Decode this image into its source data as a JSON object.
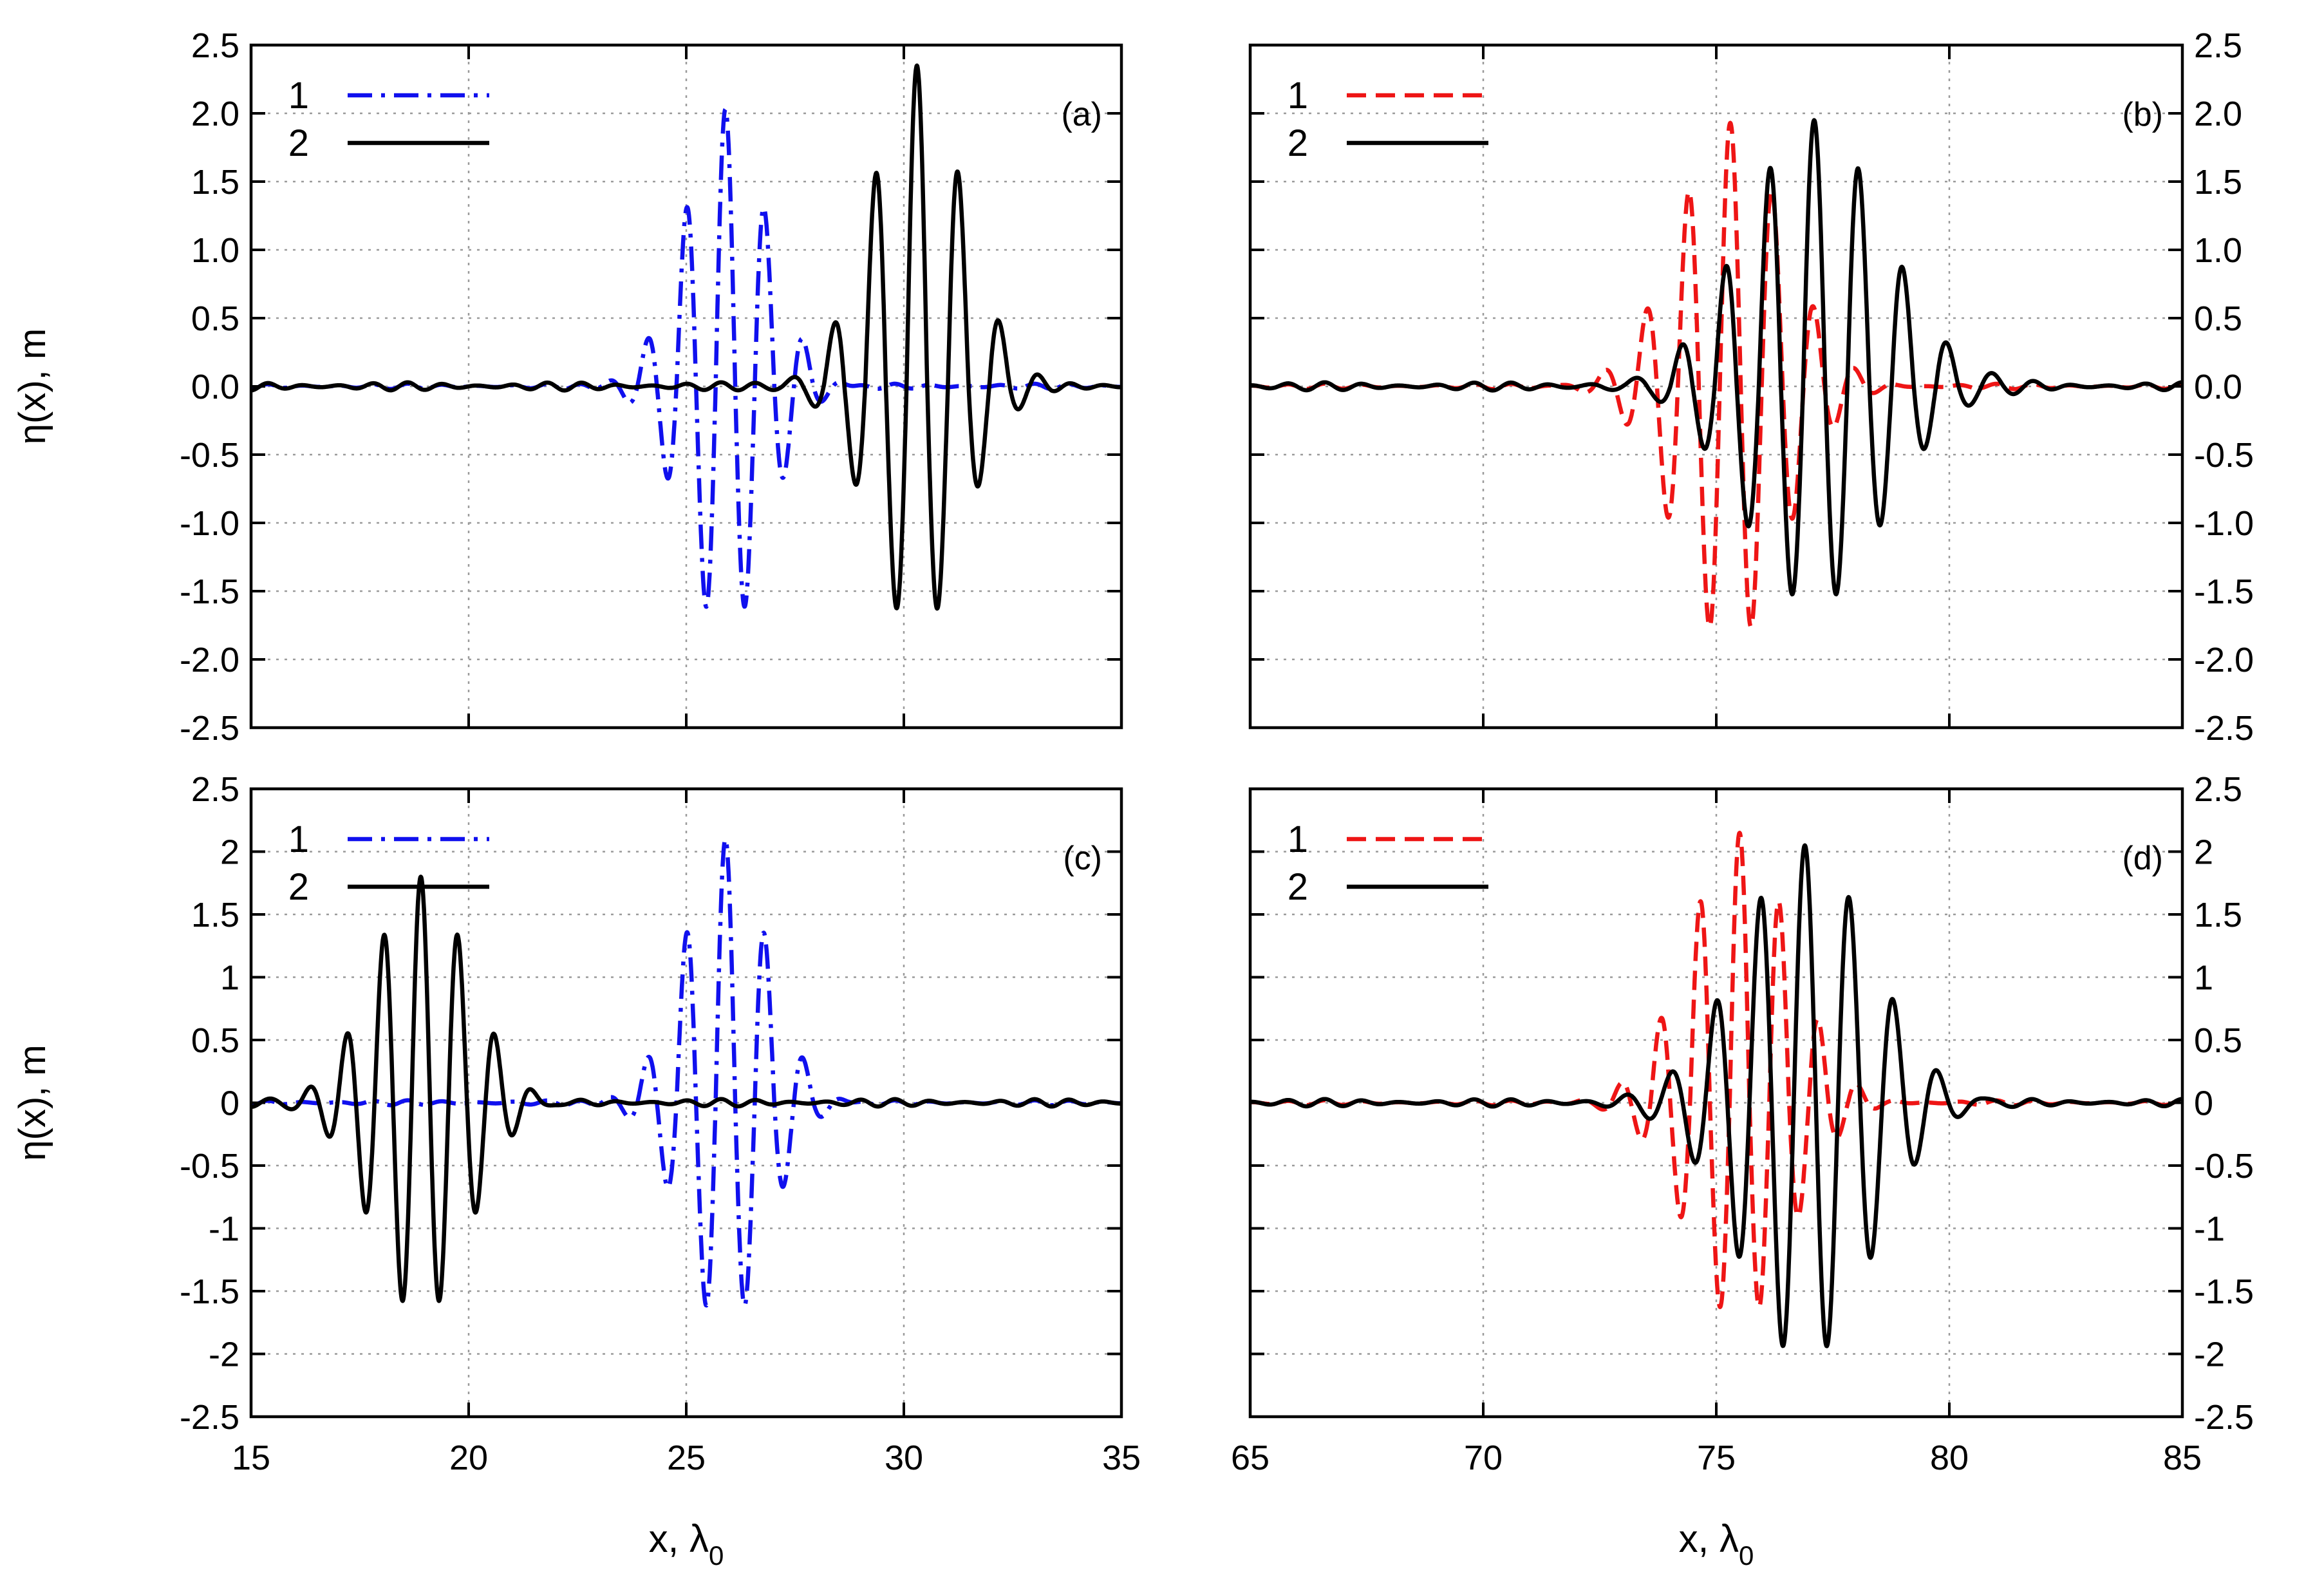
{
  "colors": {
    "blue": "#1010ee",
    "red": "#ee1515",
    "black": "#000000"
  },
  "chart_data": [
    {
      "type": "line",
      "panel": "(a)",
      "xlim": [
        15,
        35
      ],
      "ylim": [
        -2.5,
        2.5
      ],
      "xticks": [
        15,
        20,
        25,
        30,
        35
      ],
      "xtick_labels": [
        "",
        "",
        "",
        "",
        ""
      ],
      "yticks": [
        -2.5,
        -2,
        -1.5,
        -1,
        -0.5,
        0,
        0.5,
        1,
        1.5,
        2,
        2.5
      ],
      "ytick_labels": [
        "-2.5",
        "-2.0",
        "-1.5",
        "-1.0",
        "-0.5",
        "0.0",
        "0.5",
        "1.0",
        "1.5",
        "2.0",
        "2.5"
      ],
      "ytick_side": "left",
      "ylabel": "η(x), m",
      "xlabel": "",
      "grid": true,
      "legend": [
        {
          "name": "1",
          "style": "dash-dot",
          "color": "#1010ee"
        },
        {
          "name": "2",
          "style": "solid",
          "color": "#000000"
        }
      ],
      "series": [
        {
          "name": "1",
          "color": "#1010ee",
          "style": "dash-dot",
          "center": 25.9,
          "period": 0.9,
          "envelope_sigma": 0.95,
          "amp_max": 2.03,
          "amp_min": 1.8,
          "noise": 0.02
        },
        {
          "name": "2",
          "color": "#000000",
          "style": "solid",
          "center": 30.3,
          "period": 0.95,
          "envelope_sigma": 1.05,
          "amp_max": 2.35,
          "amp_min": 1.8,
          "noise": 0.03
        }
      ]
    },
    {
      "type": "line",
      "panel": "(b)",
      "xlim": [
        65,
        85
      ],
      "ylim": [
        -2.5,
        2.5
      ],
      "xticks": [
        65,
        70,
        75,
        80,
        85
      ],
      "xtick_labels": [
        "",
        "",
        "",
        "",
        ""
      ],
      "yticks": [
        -2.5,
        -2,
        -1.5,
        -1,
        -0.5,
        0,
        0.5,
        1,
        1.5,
        2,
        2.5
      ],
      "ytick_labels": [
        "-2.5",
        "-2.0",
        "-1.5",
        "-1.0",
        "-0.5",
        "0.0",
        "0.5",
        "1.0",
        "1.5",
        "2.0",
        "2.5"
      ],
      "ytick_side": "right",
      "ylabel": "",
      "xlabel": "",
      "grid": true,
      "legend": [
        {
          "name": "1",
          "style": "dashed",
          "color": "#ee1515"
        },
        {
          "name": "2",
          "style": "solid",
          "color": "#000000"
        }
      ],
      "series": [
        {
          "name": "1",
          "color": "#ee1515",
          "style": "dashed",
          "center": 75.3,
          "period": 0.9,
          "envelope_sigma": 1.15,
          "amp_max": 1.93,
          "amp_min": 1.9,
          "noise": 0.02
        },
        {
          "name": "2",
          "color": "#000000",
          "style": "solid",
          "center": 77.1,
          "period": 0.95,
          "envelope_sigma": 1.5,
          "amp_max": 1.95,
          "amp_min": 1.6,
          "noise": 0.03
        }
      ]
    },
    {
      "type": "line",
      "panel": "(c)",
      "xlim": [
        15,
        35
      ],
      "ylim": [
        -2.5,
        2.5
      ],
      "xticks": [
        15,
        20,
        25,
        30,
        35
      ],
      "xtick_labels": [
        "15",
        "20",
        "25",
        "30",
        "35"
      ],
      "yticks": [
        -2.5,
        -2,
        -1.5,
        -1,
        -0.5,
        0,
        0.5,
        1,
        1.5,
        2,
        2.5
      ],
      "ytick_labels": [
        "-2.5",
        "-2",
        "-1.5",
        "-1",
        "-0.5",
        "0",
        "0.5",
        "1",
        "1.5",
        "2",
        "2.5"
      ],
      "ytick_side": "left",
      "ylabel": "η(x), m",
      "xlabel": "x, λ0",
      "grid": true,
      "legend": [
        {
          "name": "1",
          "style": "dash-dot",
          "color": "#1010ee"
        },
        {
          "name": "2",
          "style": "solid",
          "color": "#000000"
        }
      ],
      "series": [
        {
          "name": "1",
          "color": "#1010ee",
          "style": "dash-dot",
          "center": 25.9,
          "period": 0.9,
          "envelope_sigma": 0.95,
          "amp_max": 2.1,
          "amp_min": 1.8,
          "noise": 0.02
        },
        {
          "name": "2",
          "color": "#000000",
          "style": "solid",
          "center": 18.9,
          "period": 0.85,
          "envelope_sigma": 1.1,
          "amp_max": 1.8,
          "amp_min": 1.7,
          "noise": 0.03
        }
      ]
    },
    {
      "type": "line",
      "panel": "(d)",
      "xlim": [
        65,
        85
      ],
      "ylim": [
        -2.5,
        2.5
      ],
      "xticks": [
        65,
        70,
        75,
        80,
        85
      ],
      "xtick_labels": [
        "65",
        "70",
        "75",
        "80",
        "85"
      ],
      "yticks": [
        -2.5,
        -2,
        -1.5,
        -1,
        -0.5,
        0,
        0.5,
        1,
        1.5,
        2,
        2.5
      ],
      "ytick_labels": [
        "-2.5",
        "-2",
        "-1.5",
        "-1",
        "-0.5",
        "0",
        "0.5",
        "1",
        "1.5",
        "2",
        "2.5"
      ],
      "ytick_side": "right",
      "ylabel": "",
      "xlabel": "x, λ0",
      "grid": true,
      "legend": [
        {
          "name": "1",
          "style": "dashed",
          "color": "#ee1515"
        },
        {
          "name": "2",
          "style": "solid",
          "color": "#000000"
        }
      ],
      "series": [
        {
          "name": "1",
          "color": "#ee1515",
          "style": "dashed",
          "center": 75.5,
          "period": 0.85,
          "envelope_sigma": 1.1,
          "amp_max": 2.15,
          "amp_min": 1.75,
          "noise": 0.02
        },
        {
          "name": "2",
          "color": "#000000",
          "style": "solid",
          "center": 76.9,
          "period": 0.95,
          "envelope_sigma": 1.4,
          "amp_max": 2.05,
          "amp_min": 2.05,
          "noise": 0.03
        }
      ]
    }
  ]
}
